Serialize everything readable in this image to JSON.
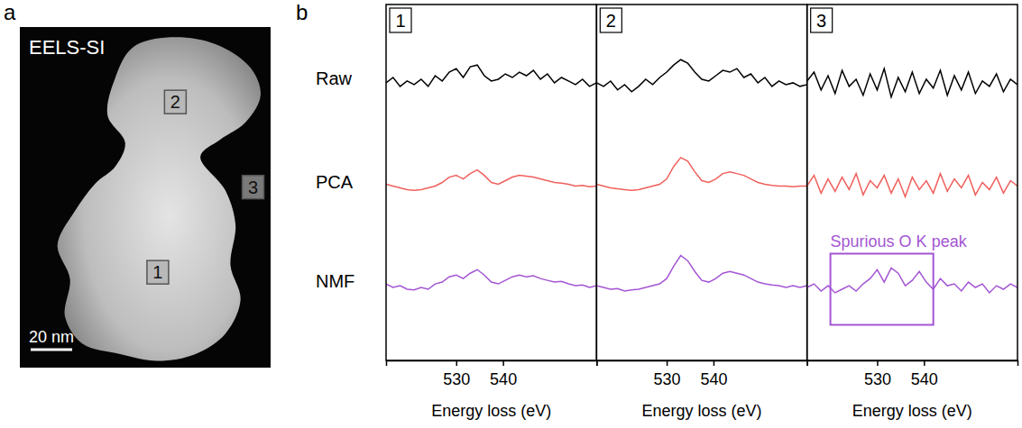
{
  "image": {
    "panel_label": "a",
    "title": "EELS-SI",
    "scale_bar": "20 nm",
    "regions": [
      "1",
      "2",
      "3"
    ]
  },
  "spectra_panel_label": "b",
  "row_labels": [
    "Raw",
    "PCA",
    "NMF"
  ],
  "chart_data": [
    {
      "type": "line",
      "title": "1",
      "xlabel": "Energy loss (eV)",
      "x": [
        515,
        516.5,
        518,
        519.5,
        521,
        522.5,
        524,
        525.5,
        527,
        528.5,
        530,
        531.5,
        533,
        534.5,
        536,
        537.5,
        539,
        540.5,
        542,
        543.5,
        545,
        546.5,
        548,
        549.5,
        551,
        552.5,
        554,
        555.5,
        557,
        558.5,
        560
      ],
      "xlim": [
        515,
        560
      ],
      "xticks": [
        530,
        540
      ],
      "ylim": [
        0,
        10
      ],
      "yticks": [],
      "tick_labels": "x",
      "series": [
        {
          "color": "#000000",
          "values": [
            7.8,
            7.95,
            7.7,
            7.85,
            7.75,
            7.9,
            7.7,
            8.0,
            7.85,
            8.1,
            8.2,
            7.95,
            8.25,
            8.3,
            8.0,
            7.85,
            7.9,
            8.05,
            7.95,
            8.1,
            8.0,
            8.15,
            7.9,
            8.05,
            7.8,
            7.95,
            7.85,
            7.75,
            7.9,
            7.7,
            7.8
          ]
        },
        {
          "color": "#f0605d",
          "values": [
            4.95,
            4.9,
            4.85,
            4.8,
            4.78,
            4.8,
            4.85,
            4.9,
            5.0,
            5.15,
            5.2,
            5.1,
            5.25,
            5.35,
            5.2,
            5.0,
            4.95,
            5.05,
            5.15,
            5.2,
            5.18,
            5.15,
            5.1,
            5.05,
            5.0,
            4.98,
            4.95,
            4.9,
            4.92,
            4.88,
            4.9
          ]
        },
        {
          "color": "#a455d4",
          "values": [
            2.15,
            2.05,
            2.1,
            2.0,
            1.98,
            2.05,
            2.0,
            2.15,
            2.2,
            2.35,
            2.4,
            2.3,
            2.45,
            2.55,
            2.4,
            2.2,
            2.15,
            2.25,
            2.35,
            2.4,
            2.35,
            2.38,
            2.3,
            2.25,
            2.2,
            2.22,
            2.15,
            2.1,
            2.12,
            2.05,
            2.1
          ]
        }
      ]
    },
    {
      "type": "line",
      "title": "2",
      "xlabel": "Energy loss (eV)",
      "x": [
        515,
        516.5,
        518,
        519.5,
        521,
        522.5,
        524,
        525.5,
        527,
        528.5,
        530,
        531.5,
        533,
        534.5,
        536,
        537.5,
        539,
        540.5,
        542,
        543.5,
        545,
        546.5,
        548,
        549.5,
        551,
        552.5,
        554,
        555.5,
        557,
        558.5,
        560
      ],
      "xlim": [
        515,
        560
      ],
      "xticks": [
        530,
        540
      ],
      "ylim": [
        0,
        10
      ],
      "yticks": [],
      "tick_labels": "x",
      "series": [
        {
          "color": "#000000",
          "values": [
            7.8,
            7.7,
            7.85,
            7.6,
            7.75,
            7.55,
            7.7,
            7.9,
            7.75,
            7.95,
            8.1,
            8.3,
            8.45,
            8.35,
            8.1,
            7.9,
            7.85,
            8.0,
            8.15,
            8.1,
            8.2,
            7.95,
            8.05,
            7.8,
            7.95,
            7.7,
            7.85,
            7.75,
            7.8,
            7.7,
            7.75
          ]
        },
        {
          "color": "#f0605d",
          "values": [
            4.95,
            4.9,
            4.85,
            4.82,
            4.8,
            4.78,
            4.8,
            4.85,
            4.9,
            4.95,
            5.1,
            5.45,
            5.7,
            5.6,
            5.3,
            5.05,
            5.0,
            5.1,
            5.25,
            5.3,
            5.25,
            5.2,
            5.1,
            5.0,
            4.95,
            4.92,
            4.9,
            4.9,
            4.88,
            4.9,
            4.9
          ]
        },
        {
          "color": "#a455d4",
          "values": [
            2.1,
            2.05,
            2.0,
            2.02,
            1.95,
            1.98,
            2.0,
            2.05,
            2.1,
            2.15,
            2.3,
            2.65,
            2.95,
            2.8,
            2.5,
            2.25,
            2.2,
            2.3,
            2.45,
            2.5,
            2.45,
            2.4,
            2.3,
            2.2,
            2.15,
            2.12,
            2.1,
            2.05,
            2.1,
            2.05,
            2.1
          ]
        }
      ]
    },
    {
      "type": "line",
      "title": "3",
      "xlabel": "Energy loss (eV)",
      "x": [
        515,
        516.5,
        518,
        519.5,
        521,
        522.5,
        524,
        525.5,
        527,
        528.5,
        530,
        531.5,
        533,
        534.5,
        536,
        537.5,
        539,
        540.5,
        542,
        543.5,
        545,
        546.5,
        548,
        549.5,
        551,
        552.5,
        554,
        555.5,
        557,
        558.5,
        560
      ],
      "xlim": [
        515,
        560
      ],
      "xticks": [
        530,
        540
      ],
      "ylim": [
        0,
        10
      ],
      "yticks": [],
      "tick_labels": "x",
      "series": [
        {
          "color": "#000000",
          "values": [
            7.85,
            8.1,
            7.6,
            8.0,
            7.5,
            8.15,
            7.7,
            7.9,
            7.45,
            8.05,
            7.6,
            8.2,
            7.4,
            7.95,
            7.55,
            8.1,
            7.5,
            7.9,
            7.65,
            8.15,
            7.45,
            8.0,
            7.6,
            8.1,
            7.5,
            7.85,
            7.7,
            8.05,
            7.55,
            7.9,
            7.75
          ]
        },
        {
          "color": "#f0605d",
          "values": [
            4.9,
            5.2,
            4.7,
            5.1,
            4.75,
            5.15,
            4.8,
            5.25,
            4.65,
            5.05,
            4.85,
            5.2,
            4.7,
            5.1,
            4.6,
            5.15,
            4.8,
            5.05,
            4.7,
            5.25,
            4.75,
            5.1,
            4.85,
            5.2,
            4.65,
            5.0,
            4.8,
            5.15,
            4.7,
            5.05,
            4.9
          ]
        },
        {
          "color": "#a455d4",
          "values": [
            2.05,
            2.15,
            1.95,
            2.1,
            1.9,
            2.0,
            2.1,
            1.95,
            2.15,
            2.3,
            2.55,
            2.2,
            2.6,
            2.45,
            2.1,
            2.25,
            2.5,
            2.2,
            2.0,
            2.3,
            2.1,
            2.15,
            1.95,
            2.2,
            2.05,
            2.15,
            1.9,
            2.1,
            2.0,
            2.15,
            2.05
          ]
        }
      ],
      "annotations": [
        {
          "text": "Spurious O K peak",
          "x": [
            520,
            542
          ],
          "y": [
            1,
            3
          ],
          "color": "#a455d4"
        }
      ]
    }
  ]
}
